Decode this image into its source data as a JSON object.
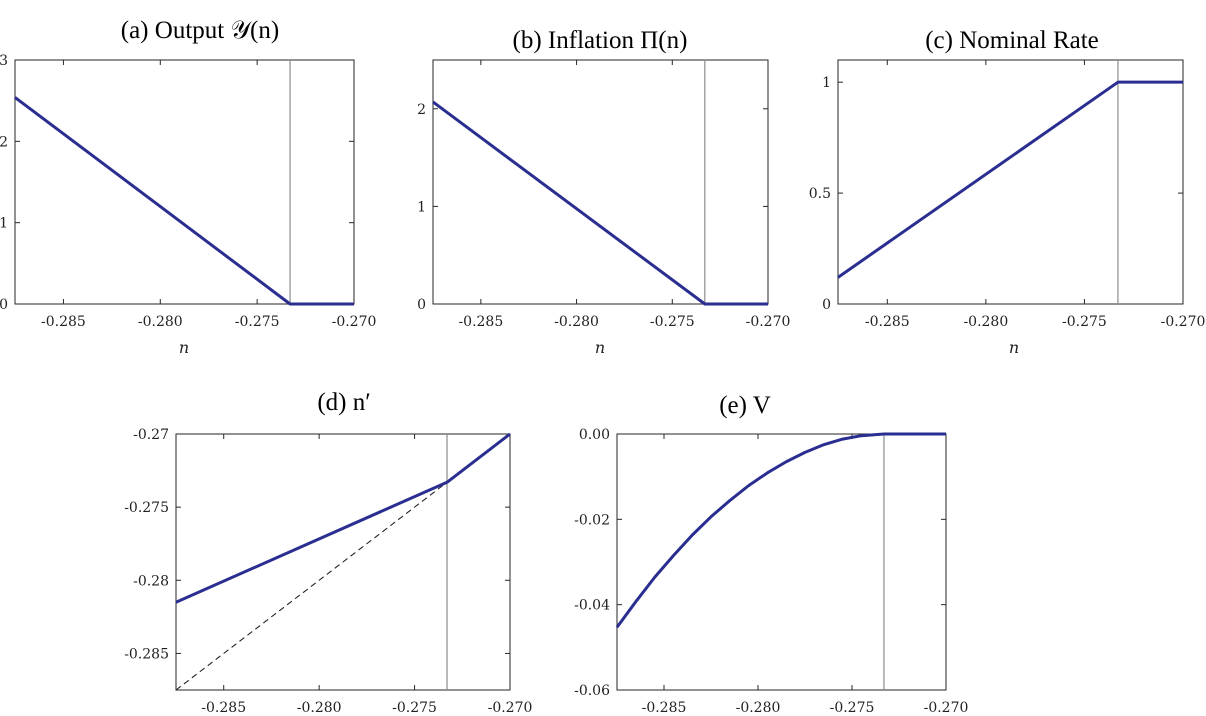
{
  "colors": {
    "series": "#2b2e91",
    "vline": "#8c8c8c",
    "axis": "#262626"
  },
  "chart_data": [
    {
      "id": "a",
      "type": "line",
      "title": "(a) Output 𝒴(n)",
      "xlabel": "n",
      "ylabel": "",
      "xlim": [
        -0.2875,
        -0.27
      ],
      "ylim": [
        0,
        3
      ],
      "xticks": [
        -0.285,
        -0.28,
        -0.275,
        -0.27
      ],
      "xtick_labels": [
        "-0.285",
        "-0.280",
        "-0.275",
        "-0.270"
      ],
      "yticks": [
        0,
        1,
        2,
        3
      ],
      "ytick_labels": [
        "0",
        "1",
        "2",
        "3"
      ],
      "vline_x": -0.2733,
      "series": [
        {
          "x": [
            -0.2875,
            -0.2733,
            -0.27
          ],
          "y": [
            2.54,
            0,
            0
          ]
        }
      ]
    },
    {
      "id": "b",
      "type": "line",
      "title": "(b) Inflation Π(n)",
      "xlabel": "n",
      "ylabel": "",
      "xlim": [
        -0.2875,
        -0.27
      ],
      "ylim": [
        0,
        2.5
      ],
      "xticks": [
        -0.285,
        -0.28,
        -0.275,
        -0.27
      ],
      "xtick_labels": [
        "-0.285",
        "-0.280",
        "-0.275",
        "-0.270"
      ],
      "yticks": [
        0,
        1,
        2
      ],
      "ytick_labels": [
        "0",
        "1",
        "2"
      ],
      "vline_x": -0.2733,
      "series": [
        {
          "x": [
            -0.2875,
            -0.2733,
            -0.27
          ],
          "y": [
            2.07,
            0,
            0
          ]
        }
      ]
    },
    {
      "id": "c",
      "type": "line",
      "title": "(c) Nominal Rate",
      "xlabel": "n",
      "ylabel": "",
      "xlim": [
        -0.2875,
        -0.27
      ],
      "ylim": [
        0,
        1.1
      ],
      "xticks": [
        -0.285,
        -0.28,
        -0.275,
        -0.27
      ],
      "xtick_labels": [
        "-0.285",
        "-0.280",
        "-0.275",
        "-0.270"
      ],
      "yticks": [
        0,
        0.5,
        1
      ],
      "ytick_labels": [
        "0",
        "0.5",
        "1"
      ],
      "vline_x": -0.2733,
      "series": [
        {
          "x": [
            -0.2875,
            -0.2733,
            -0.27
          ],
          "y": [
            0.12,
            1,
            1
          ]
        }
      ]
    },
    {
      "id": "d",
      "type": "line",
      "title": "(d) n′",
      "xlabel": "",
      "ylabel": "",
      "xlim": [
        -0.2875,
        -0.27
      ],
      "ylim": [
        -0.2875,
        -0.27
      ],
      "xticks": [
        -0.285,
        -0.28,
        -0.275,
        -0.27
      ],
      "xtick_labels": [
        "-0.285",
        "-0.280",
        "-0.275",
        "-0.270"
      ],
      "yticks": [
        -0.285,
        -0.28,
        -0.275,
        -0.27
      ],
      "ytick_labels": [
        "-0.285",
        "-0.28",
        "-0.275",
        "-0.27"
      ],
      "vline_x": -0.2733,
      "series": [
        {
          "x": [
            -0.2875,
            -0.2733,
            -0.27
          ],
          "y": [
            -0.2815,
            -0.2733,
            -0.27
          ]
        }
      ],
      "reference": {
        "x": [
          -0.2875,
          -0.27
        ],
        "y": [
          -0.2875,
          -0.27
        ],
        "style": "dashed"
      }
    },
    {
      "id": "e",
      "type": "line",
      "title": "(e) V",
      "xlabel": "",
      "ylabel": "",
      "xlim": [
        -0.2875,
        -0.27
      ],
      "ylim": [
        -0.06,
        0
      ],
      "xticks": [
        -0.285,
        -0.28,
        -0.275,
        -0.27
      ],
      "xtick_labels": [
        "-0.285",
        "-0.280",
        "-0.275",
        "-0.270"
      ],
      "yticks": [
        -0.06,
        -0.04,
        -0.02,
        0
      ],
      "ytick_labels": [
        "-0.06",
        "-0.04",
        "-0.02",
        "0.00"
      ],
      "vline_x": -0.2733,
      "series": [
        {
          "x": [
            -0.2875,
            -0.2865,
            -0.2855,
            -0.2845,
            -0.2835,
            -0.2825,
            -0.2815,
            -0.2805,
            -0.2795,
            -0.2785,
            -0.2775,
            -0.2765,
            -0.2755,
            -0.2745,
            -0.2733,
            -0.272,
            -0.27
          ],
          "y": [
            -0.0453,
            -0.0393,
            -0.0336,
            -0.0285,
            -0.0237,
            -0.0194,
            -0.0156,
            -0.0121,
            -0.0091,
            -0.0065,
            -0.0043,
            -0.0025,
            -0.0012,
            -0.0004,
            0,
            0,
            0
          ]
        }
      ]
    }
  ]
}
